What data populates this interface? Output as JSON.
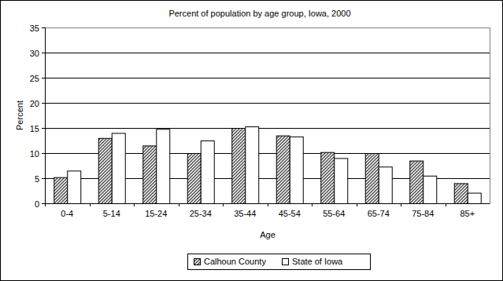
{
  "chart_data": {
    "type": "bar",
    "title": "Percent of population by age group, Iowa, 2000",
    "x_label": "Age",
    "y_label": "Percent",
    "categories": [
      "0-4",
      "5-14",
      "15-24",
      "25-34",
      "35-44",
      "45-54",
      "55-64",
      "65-74",
      "75-84",
      "85+"
    ],
    "series": [
      {
        "name": "Calhoun County",
        "color": "#404040",
        "values": [
          5.2,
          13,
          11.5,
          10,
          15,
          13.5,
          10.2,
          10,
          8.5,
          4
        ]
      },
      {
        "name": "State of Iowa",
        "color": "#ffffff",
        "values": [
          6.5,
          14,
          14.8,
          12.5,
          15.3,
          13.3,
          9,
          7.3,
          5.5,
          2.1
        ]
      }
    ],
    "ylim": [
      0,
      35
    ],
    "yticks": [
      0,
      5,
      10,
      15,
      20,
      25,
      30,
      35
    ],
    "grid": true,
    "legend": "bottom"
  }
}
